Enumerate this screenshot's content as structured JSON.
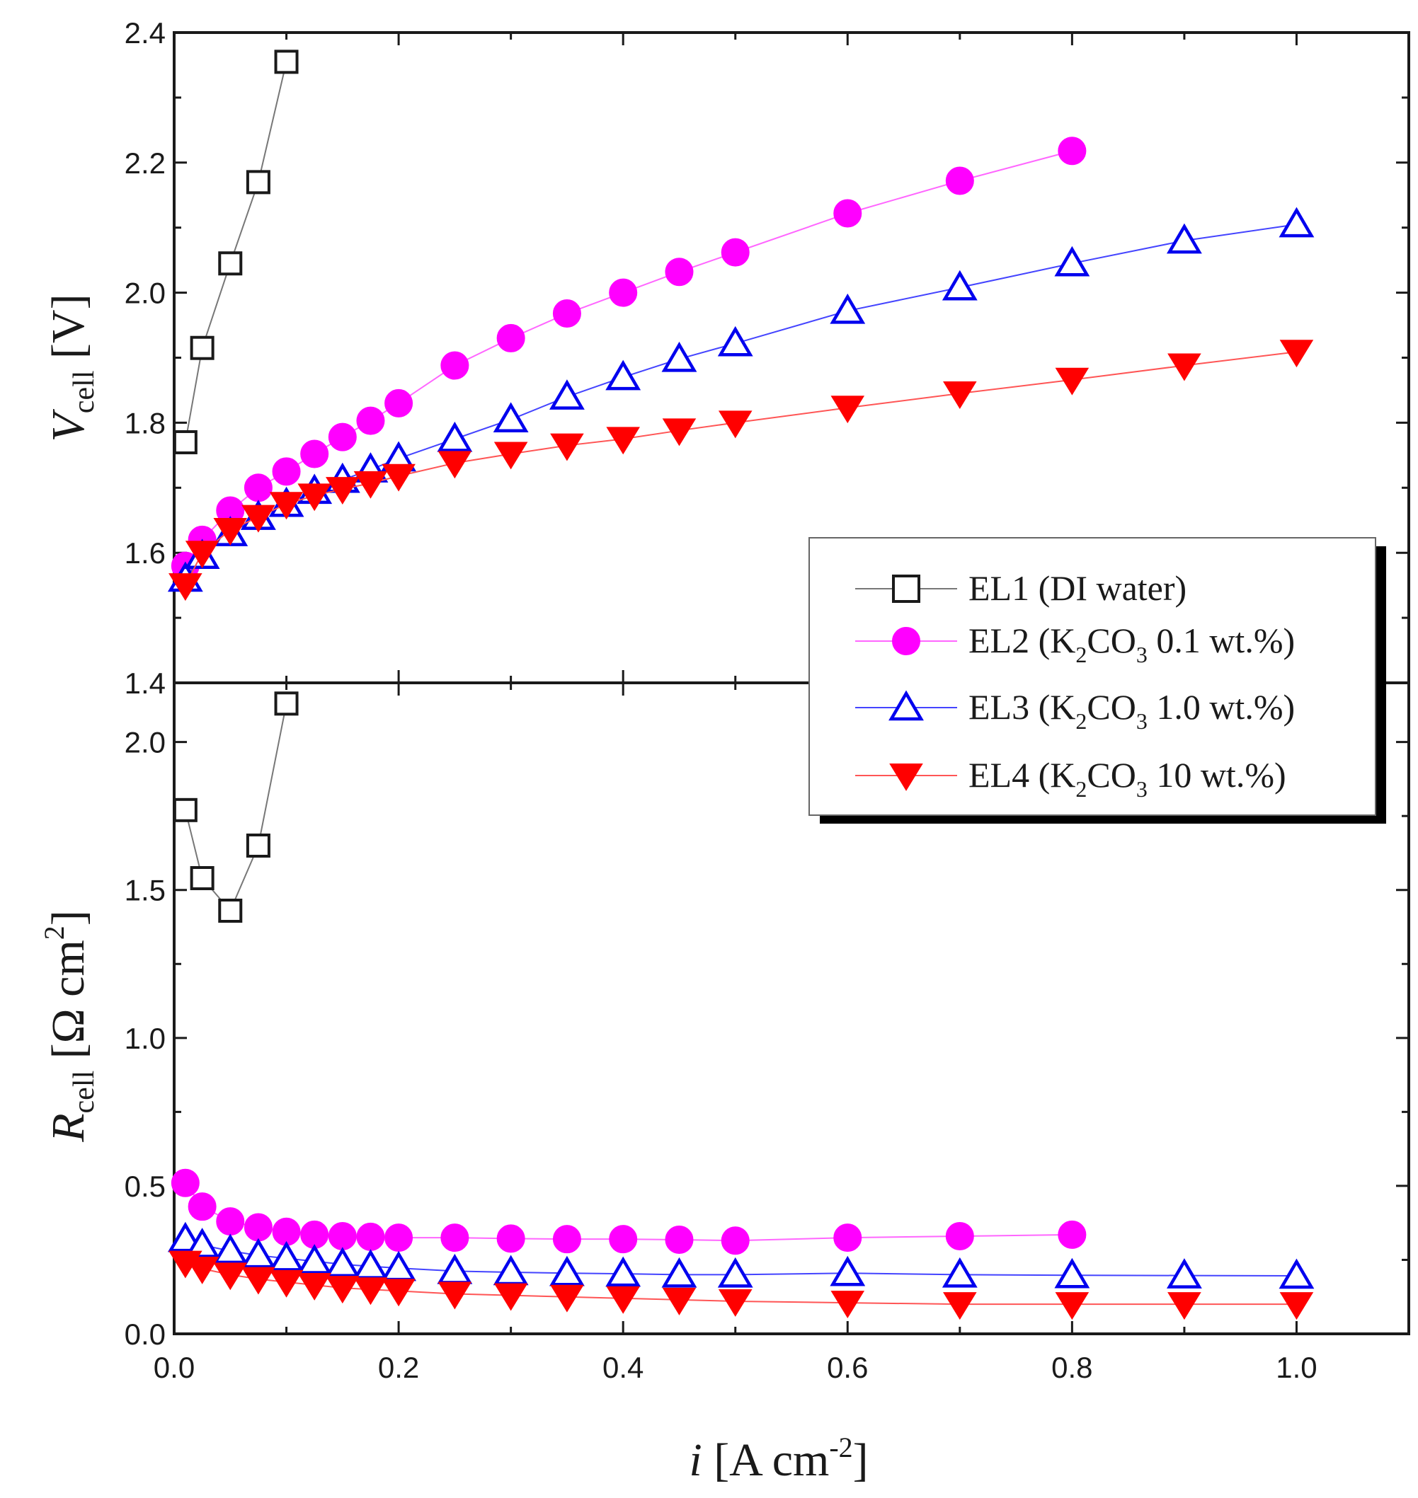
{
  "chart_data": {
    "type": "line",
    "x_axis": {
      "label_italic": "i",
      "label_unit_pre": " [A cm",
      "label_unit_sup": "-2",
      "label_unit_post": "]",
      "range": [
        0.0,
        1.1
      ],
      "ticks": [
        "0.0",
        "0.2",
        "0.4",
        "0.6",
        "0.8",
        "1.0"
      ],
      "tick_values": [
        0.0,
        0.2,
        0.4,
        0.6,
        0.8,
        1.0
      ]
    },
    "panels": [
      {
        "id": "top",
        "y_axis": {
          "label_italic": "V",
          "label_sub": "cell",
          "label_unit": " [V]",
          "range": [
            1.4,
            2.4
          ],
          "ticks": [
            "1.4",
            "1.6",
            "1.8",
            "2.0",
            "2.2",
            "2.4"
          ],
          "tick_values": [
            1.4,
            1.6,
            1.8,
            2.0,
            2.2,
            2.4
          ]
        },
        "series": [
          {
            "key": "EL1",
            "x": [
              0.01,
              0.025,
              0.05,
              0.075,
              0.1
            ],
            "y": [
              1.77,
              1.915,
              2.045,
              2.17,
              2.355
            ]
          },
          {
            "key": "EL2",
            "x": [
              0.01,
              0.025,
              0.05,
              0.075,
              0.1,
              0.125,
              0.15,
              0.175,
              0.2,
              0.25,
              0.3,
              0.35,
              0.4,
              0.45,
              0.5,
              0.6,
              0.7,
              0.8
            ],
            "y": [
              1.58,
              1.62,
              1.665,
              1.7,
              1.725,
              1.752,
              1.778,
              1.803,
              1.83,
              1.888,
              1.93,
              1.968,
              2.0,
              2.032,
              2.062,
              2.122,
              2.172,
              2.218
            ]
          },
          {
            "key": "EL3",
            "x": [
              0.01,
              0.025,
              0.05,
              0.075,
              0.1,
              0.125,
              0.15,
              0.175,
              0.2,
              0.25,
              0.3,
              0.35,
              0.4,
              0.45,
              0.5,
              0.6,
              0.7,
              0.8,
              0.9,
              1.0
            ],
            "y": [
              1.56,
              1.595,
              1.63,
              1.655,
              1.675,
              1.695,
              1.712,
              1.728,
              1.745,
              1.775,
              1.805,
              1.84,
              1.87,
              1.898,
              1.922,
              1.972,
              2.008,
              2.045,
              2.08,
              2.105
            ]
          },
          {
            "key": "EL4",
            "x": [
              0.01,
              0.025,
              0.05,
              0.075,
              0.1,
              0.125,
              0.15,
              0.175,
              0.2,
              0.25,
              0.3,
              0.35,
              0.4,
              0.45,
              0.5,
              0.6,
              0.7,
              0.8,
              0.9,
              1.0
            ],
            "y": [
              1.55,
              1.6,
              1.635,
              1.655,
              1.675,
              1.688,
              1.698,
              1.707,
              1.718,
              1.738,
              1.752,
              1.765,
              1.775,
              1.788,
              1.8,
              1.823,
              1.845,
              1.866,
              1.888,
              1.909
            ]
          }
        ]
      },
      {
        "id": "bottom",
        "y_axis": {
          "label_italic": "R",
          "label_sub": "cell",
          "label_unit_pre": " [Ω cm",
          "label_unit_sup": "2",
          "label_unit_post": "]",
          "range": [
            0.0,
            2.2
          ],
          "ticks": [
            "0.0",
            "0.5",
            "1.0",
            "1.5",
            "2.0"
          ],
          "tick_values": [
            0.0,
            0.5,
            1.0,
            1.5,
            2.0
          ]
        },
        "series": [
          {
            "key": "EL1",
            "x": [
              0.01,
              0.025,
              0.05,
              0.075,
              0.1
            ],
            "y": [
              1.77,
              1.54,
              1.43,
              1.65,
              2.13
            ]
          },
          {
            "key": "EL2",
            "x": [
              0.01,
              0.025,
              0.05,
              0.075,
              0.1,
              0.125,
              0.15,
              0.175,
              0.2,
              0.25,
              0.3,
              0.35,
              0.4,
              0.45,
              0.5,
              0.6,
              0.7,
              0.8
            ],
            "y": [
              0.51,
              0.43,
              0.38,
              0.36,
              0.345,
              0.335,
              0.33,
              0.328,
              0.325,
              0.325,
              0.322,
              0.32,
              0.32,
              0.318,
              0.315,
              0.325,
              0.33,
              0.335
            ]
          },
          {
            "key": "EL3",
            "x": [
              0.01,
              0.025,
              0.05,
              0.075,
              0.1,
              0.125,
              0.15,
              0.175,
              0.2,
              0.25,
              0.3,
              0.35,
              0.4,
              0.45,
              0.5,
              0.6,
              0.7,
              0.8,
              0.9,
              1.0
            ],
            "y": [
              0.32,
              0.3,
              0.28,
              0.265,
              0.255,
              0.245,
              0.235,
              0.228,
              0.222,
              0.212,
              0.208,
              0.205,
              0.203,
              0.2,
              0.2,
              0.205,
              0.2,
              0.198,
              0.197,
              0.196
            ]
          },
          {
            "key": "EL4",
            "x": [
              0.01,
              0.025,
              0.05,
              0.075,
              0.1,
              0.125,
              0.15,
              0.175,
              0.2,
              0.25,
              0.3,
              0.35,
              0.4,
              0.45,
              0.5,
              0.6,
              0.7,
              0.8,
              0.9,
              1.0
            ],
            "y": [
              0.24,
              0.22,
              0.2,
              0.185,
              0.175,
              0.165,
              0.155,
              0.15,
              0.145,
              0.135,
              0.13,
              0.125,
              0.12,
              0.115,
              0.11,
              0.105,
              0.1,
              0.1,
              0.1,
              0.1
            ]
          }
        ]
      }
    ],
    "legend": {
      "placement": "right, spanning the panel boundary",
      "entries": [
        {
          "key": "EL1",
          "marker": "open-square",
          "color": "#1a1a1a",
          "line_color": "#777777",
          "pre": "EL1 (DI water)",
          "mid": "",
          "post": "",
          "post2": ""
        },
        {
          "key": "EL2",
          "marker": "filled-circle",
          "color": "#ff00ff",
          "line_color": "#ff66ff",
          "pre": "EL2 (K",
          "mid": "2",
          "post": "CO",
          "post2": "3",
          "tail": " 0.1 wt.%)"
        },
        {
          "key": "EL3",
          "marker": "open-triangle-up",
          "color": "#0000ee",
          "line_color": "#4444ff",
          "pre": "EL3 (K",
          "mid": "2",
          "post": "CO",
          "post2": "3",
          "tail": " 1.0 wt.%)"
        },
        {
          "key": "EL4",
          "marker": "filled-triangle-down",
          "color": "#ff0000",
          "line_color": "#ff5555",
          "pre": "EL4 (K",
          "mid": "2",
          "post": "CO",
          "post2": "3",
          "tail": " 10 wt.%)"
        }
      ]
    }
  }
}
